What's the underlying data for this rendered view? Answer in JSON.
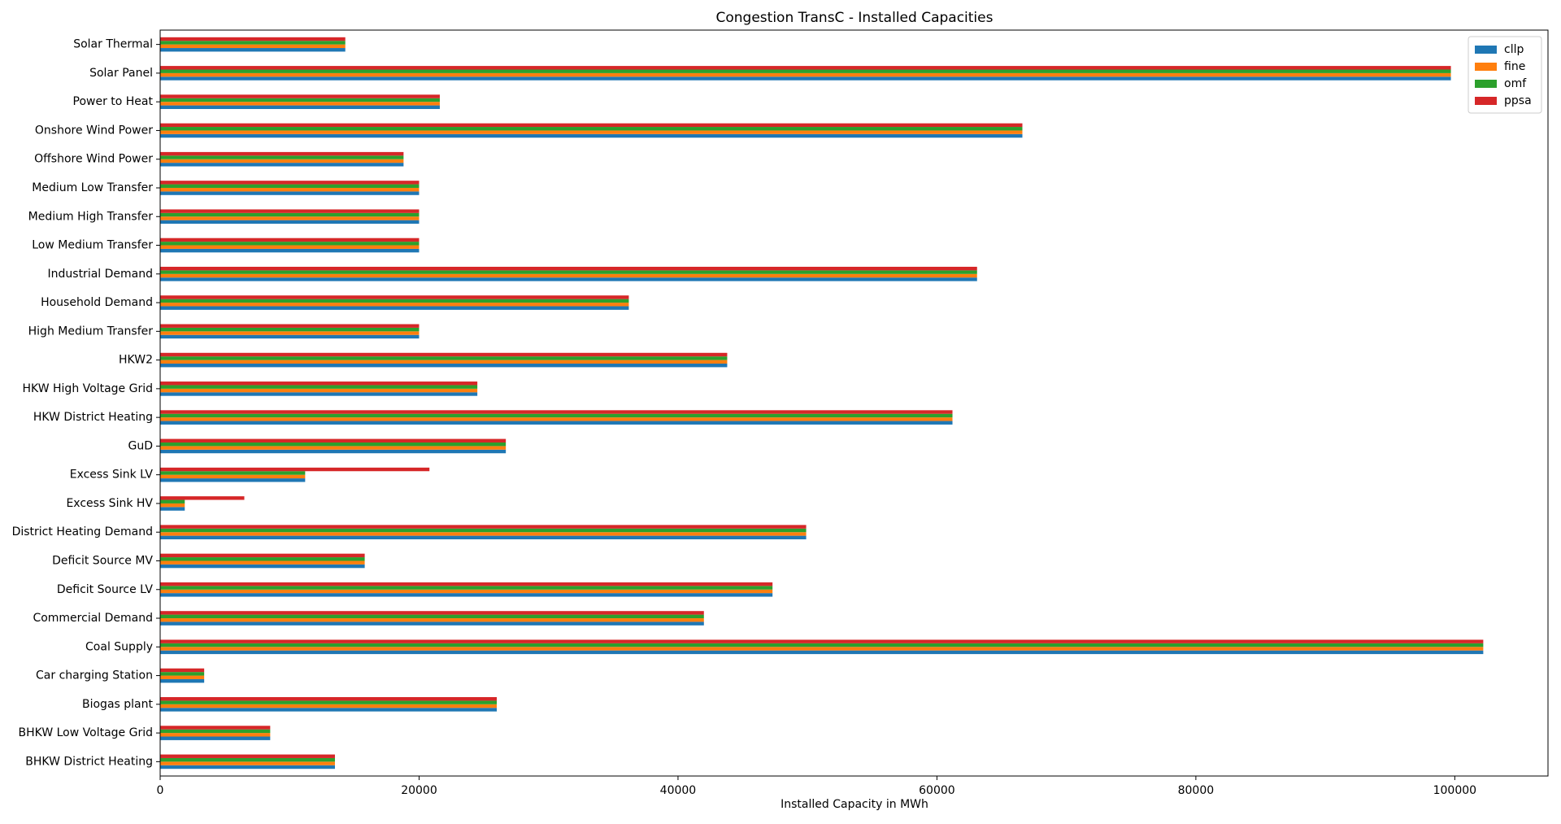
{
  "chart_data": {
    "type": "barh",
    "title": "Congestion TransC - Installed Capacities",
    "x_label": "Installed Capacity in MWh",
    "categories": [
      "BHKW District Heating",
      "BHKW Low Voltage Grid",
      "Biogas plant",
      "Car charging Station",
      "Coal Supply",
      "Commercial Demand",
      "Deficit Source LV",
      "Deficit Source MV",
      "District Heating Demand",
      "Excess Sink HV",
      "Excess Sink LV",
      "GuD",
      "HKW District Heating",
      "HKW High Voltage Grid",
      "HKW2",
      "High Medium Transfer",
      "Household Demand",
      "Industrial Demand",
      "Low Medium Transfer",
      "Medium High Transfer",
      "Medium Low Transfer",
      "Offshore Wind Power",
      "Onshore Wind Power",
      "Power to Heat",
      "Solar Panel",
      "Solar Thermal"
    ],
    "series": [
      {
        "name": "cllp",
        "color": "#1f77b4",
        "values": [
          13500,
          8500,
          26000,
          3400,
          102200,
          42000,
          47300,
          15800,
          49900,
          1900,
          11200,
          26700,
          61200,
          24500,
          43800,
          20000,
          36200,
          63100,
          20000,
          20000,
          20000,
          18800,
          66600,
          21600,
          99700,
          14300
        ]
      },
      {
        "name": "fine",
        "color": "#ff7f0e",
        "values": [
          13500,
          8500,
          26000,
          3400,
          102200,
          42000,
          47300,
          15800,
          49900,
          1900,
          11200,
          26700,
          61200,
          24500,
          43800,
          20000,
          36200,
          63100,
          20000,
          20000,
          20000,
          18800,
          66600,
          21600,
          99700,
          14300
        ]
      },
      {
        "name": "omf",
        "color": "#2ca02c",
        "values": [
          13500,
          8500,
          26000,
          3400,
          102200,
          42000,
          47300,
          15800,
          49900,
          1900,
          11200,
          26700,
          61200,
          24500,
          43800,
          20000,
          36200,
          63100,
          20000,
          20000,
          20000,
          18800,
          66600,
          21600,
          99700,
          14300
        ]
      },
      {
        "name": "ppsa",
        "color": "#d62728",
        "values": [
          13500,
          8500,
          26000,
          3400,
          102200,
          42000,
          47300,
          15800,
          49900,
          6500,
          20800,
          26700,
          61200,
          24500,
          43800,
          20000,
          36200,
          63100,
          20000,
          20000,
          20000,
          18800,
          66600,
          21600,
          99700,
          14300
        ]
      }
    ],
    "xlim": [
      0,
      107200
    ],
    "xticks": [
      0,
      20000,
      40000,
      60000,
      80000,
      100000
    ],
    "legend": "upper right",
    "grid": false
  }
}
